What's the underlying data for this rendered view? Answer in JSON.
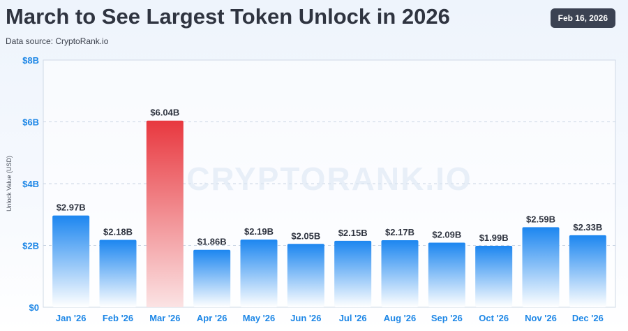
{
  "header": {
    "title": "March to See Largest Token Unlock in 2026",
    "source": "Data source: CryptoRank.io",
    "date": "Feb 16, 2026"
  },
  "watermark": "CRYPTORANK.IO",
  "colors": {
    "bar_top": "#1c86f0",
    "bar_bottom": "#ffffff",
    "highlight_top": "#e8383f",
    "highlight_bottom": "#fbe3e4",
    "axis_text": "#1c86e6",
    "grid": "#c9d4e3"
  },
  "chart_data": {
    "type": "bar",
    "title": "March to See Largest Token Unlock in 2026",
    "xlabel": "",
    "ylabel": "Unlock Value (USD)",
    "ylim": [
      0,
      8
    ],
    "yticks": [
      0,
      2,
      4,
      6,
      8
    ],
    "ytick_labels": [
      "$0",
      "$2B",
      "$4B",
      "$6B",
      "$8B"
    ],
    "categories": [
      "Jan '26",
      "Feb '26",
      "Mar '26",
      "Apr '26",
      "May '26",
      "Jun '26",
      "Jul '26",
      "Aug '26",
      "Sep '26",
      "Oct '26",
      "Nov '26",
      "Dec '26"
    ],
    "values": [
      2.97,
      2.18,
      6.04,
      1.86,
      2.19,
      2.05,
      2.15,
      2.17,
      2.09,
      1.99,
      2.59,
      2.33
    ],
    "value_labels": [
      "$2.97B",
      "$2.18B",
      "$6.04B",
      "$1.86B",
      "$2.19B",
      "$2.05B",
      "$2.15B",
      "$2.17B",
      "$2.09B",
      "$1.99B",
      "$2.59B",
      "$2.33B"
    ],
    "highlight_index": 2,
    "grid": true
  }
}
